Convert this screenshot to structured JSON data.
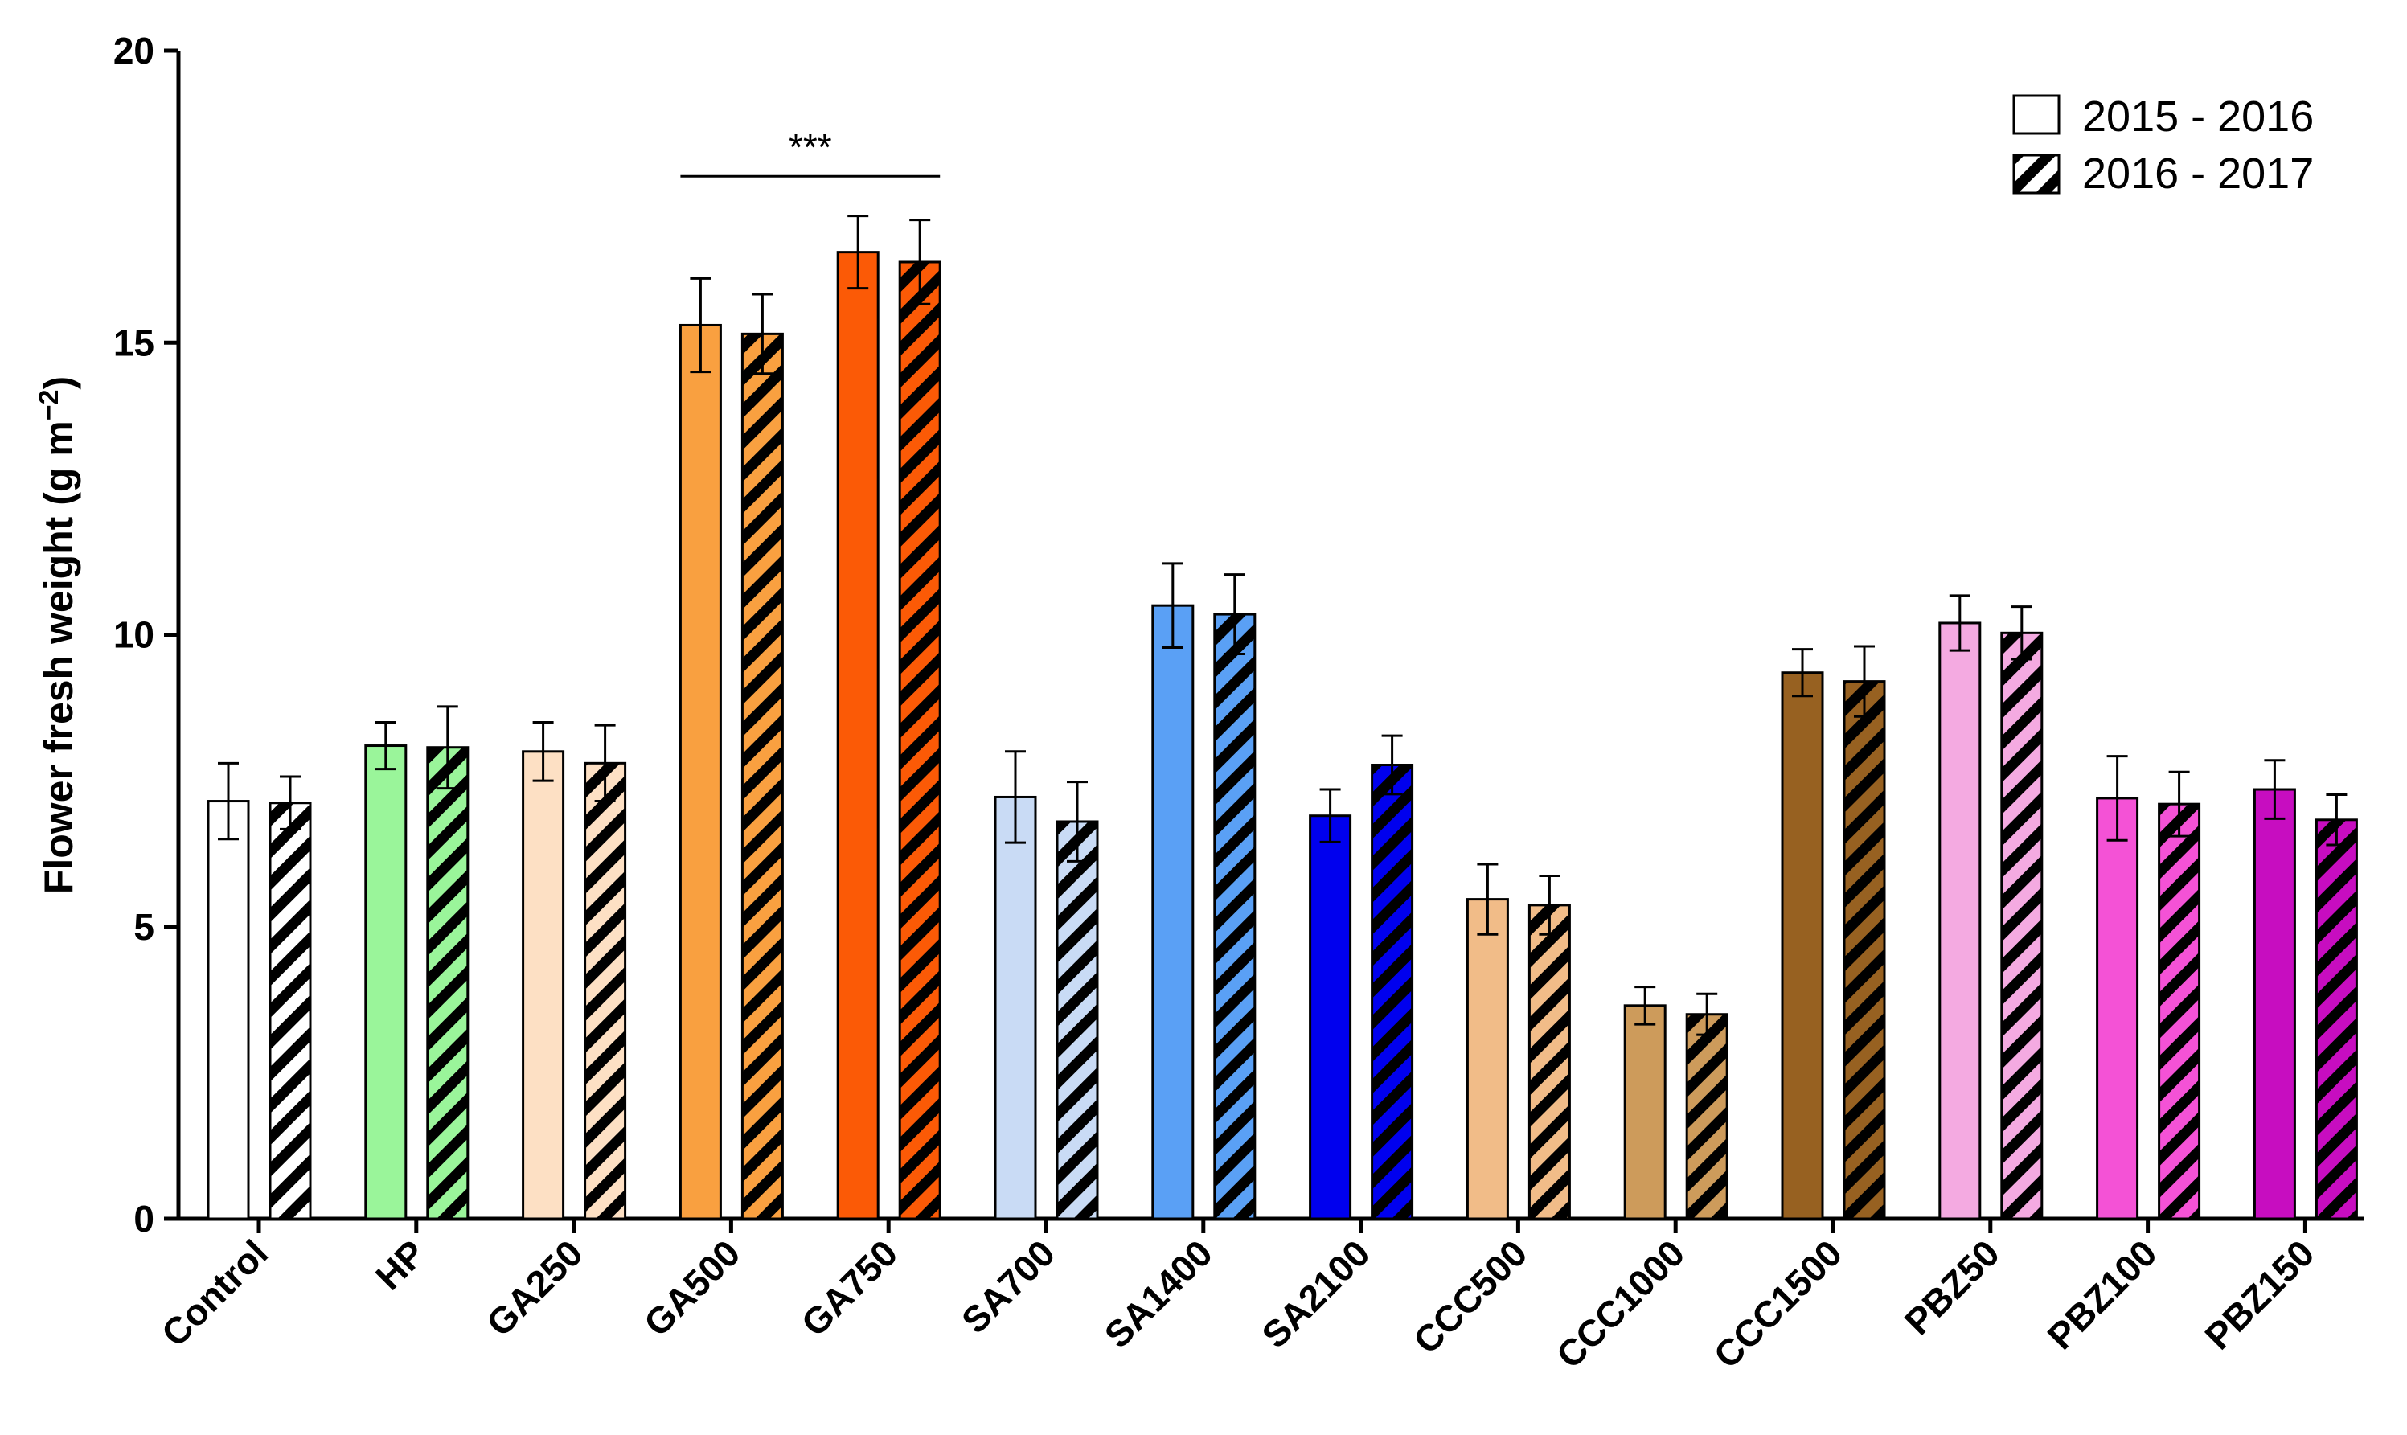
{
  "chart_data": {
    "type": "bar",
    "ylabel": "Flower fresh weight (g m⁻²)",
    "ylabel_main": "Flower fresh weight (g m",
    "ylabel_sup": "−2",
    "ylabel_close": ")",
    "xlabel": "",
    "ylim": [
      0,
      20
    ],
    "yticks": [
      0,
      5,
      10,
      15,
      20
    ],
    "ytick_labels": [
      "0",
      "5",
      "10",
      "15",
      "20"
    ],
    "categories": [
      "Control",
      "HP",
      "GA250",
      "GA500",
      "GA750",
      "SA700",
      "SA1400",
      "SA2100",
      "CCC500",
      "CCC1000",
      "CCC1500",
      "PBZ50",
      "PBZ100",
      "PBZ150"
    ],
    "colors": [
      "#ffffff",
      "#9af59a",
      "#fde0c4",
      "#f9a040",
      "#fb5a06",
      "#c9dbf5",
      "#5aa0f5",
      "#0000ee",
      "#f1bc88",
      "#cd9b5b",
      "#976121",
      "#f4aae1",
      "#f452d6",
      "#c70dc0"
    ],
    "series": [
      {
        "name": "2015 - 2016",
        "pattern": "solid",
        "values": [
          7.15,
          8.1,
          8.0,
          15.3,
          16.55,
          7.22,
          10.5,
          6.9,
          5.47,
          3.65,
          9.35,
          10.2,
          7.2,
          7.35
        ],
        "errors": [
          0.65,
          0.4,
          0.5,
          0.8,
          0.62,
          0.78,
          0.72,
          0.45,
          0.6,
          0.32,
          0.4,
          0.47,
          0.72,
          0.5
        ]
      },
      {
        "name": "2016 - 2017",
        "pattern": "hatched",
        "values": [
          7.12,
          8.07,
          7.8,
          15.15,
          16.38,
          6.8,
          10.35,
          7.77,
          5.37,
          3.5,
          9.2,
          10.03,
          7.1,
          6.83
        ]
      }
    ],
    "errors_series2": [
      0.45,
      0.7,
      0.65,
      0.68,
      0.72,
      0.68,
      0.68,
      0.5,
      0.5,
      0.35,
      0.6,
      0.45,
      0.55,
      0.43
    ],
    "legend": {
      "position": "top-right",
      "entries": [
        "2015 - 2016",
        "2016 - 2017"
      ]
    },
    "annotations": [
      {
        "text": "***",
        "from_category": "GA500",
        "to_category": "GA750",
        "y": 17.85
      }
    ]
  }
}
